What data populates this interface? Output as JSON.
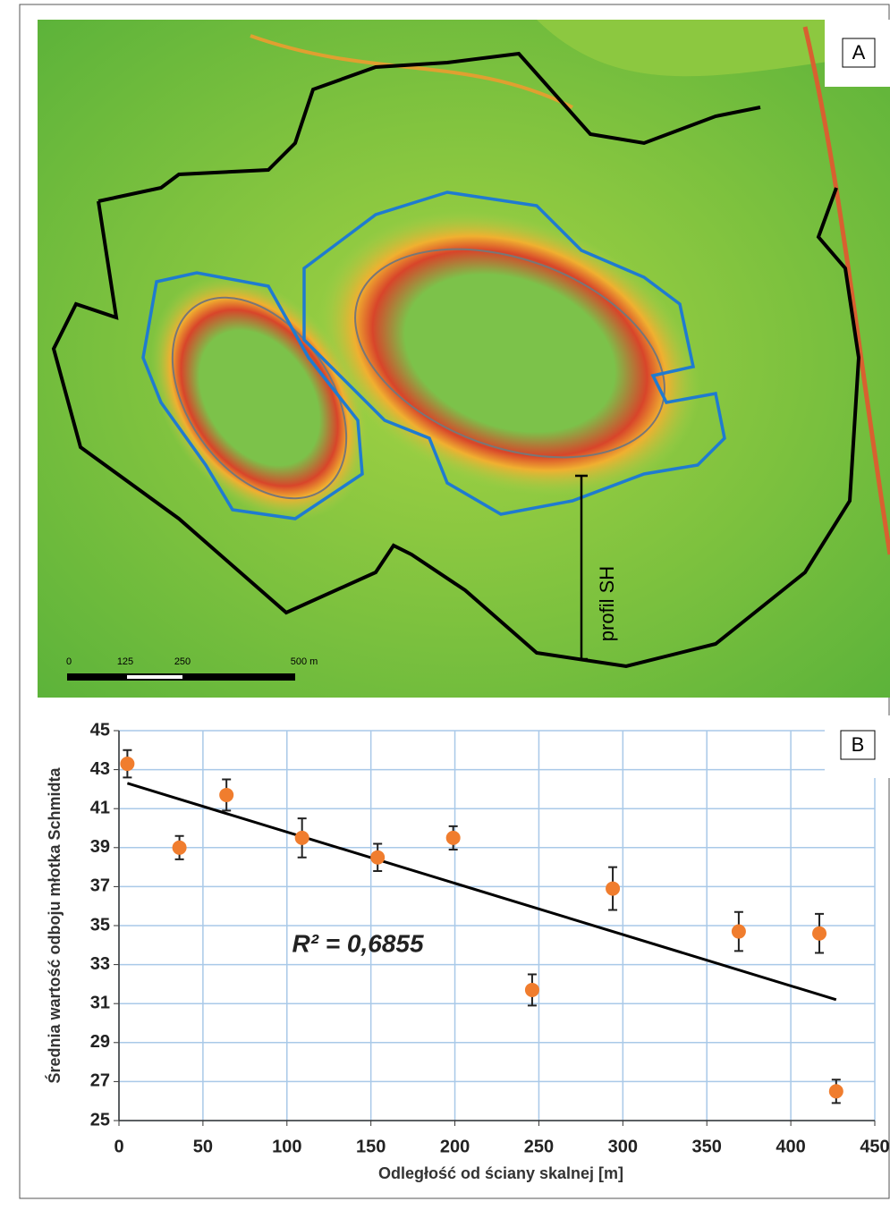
{
  "panel_a": {
    "label": "A",
    "profile_label": "profil SH",
    "scale_labels": [
      "0",
      "125",
      "250",
      "500 m"
    ]
  },
  "chart_data": {
    "type": "scatter",
    "panel_label": "B",
    "x_label": "Odległość od ściany skalnej [m]",
    "y_label": "Średnia wartość odboju młotka Schmidta",
    "annotation": "R² = 0,6855",
    "x": [
      5,
      36,
      64,
      109,
      154,
      199,
      246,
      294,
      369,
      417,
      427
    ],
    "values": [
      43.3,
      39.0,
      41.7,
      39.5,
      38.5,
      39.5,
      31.7,
      36.9,
      34.7,
      34.6,
      26.5
    ],
    "errors": [
      0.7,
      0.6,
      0.8,
      1.0,
      0.7,
      0.6,
      0.8,
      1.1,
      1.0,
      1.0,
      0.6
    ],
    "color": "#f07d2e",
    "trendline": {
      "x": [
        5,
        427
      ],
      "values": [
        42.3,
        31.2
      ],
      "color": "#000000"
    },
    "xlim": [
      0,
      450
    ],
    "xticks": [
      0,
      50,
      100,
      150,
      200,
      250,
      300,
      350,
      400,
      450
    ],
    "ylim": [
      25,
      45
    ],
    "yticks": [
      25,
      27,
      29,
      31,
      33,
      35,
      37,
      39,
      41,
      43,
      45
    ],
    "grid": true,
    "grid_color": "#a9c9e8"
  }
}
